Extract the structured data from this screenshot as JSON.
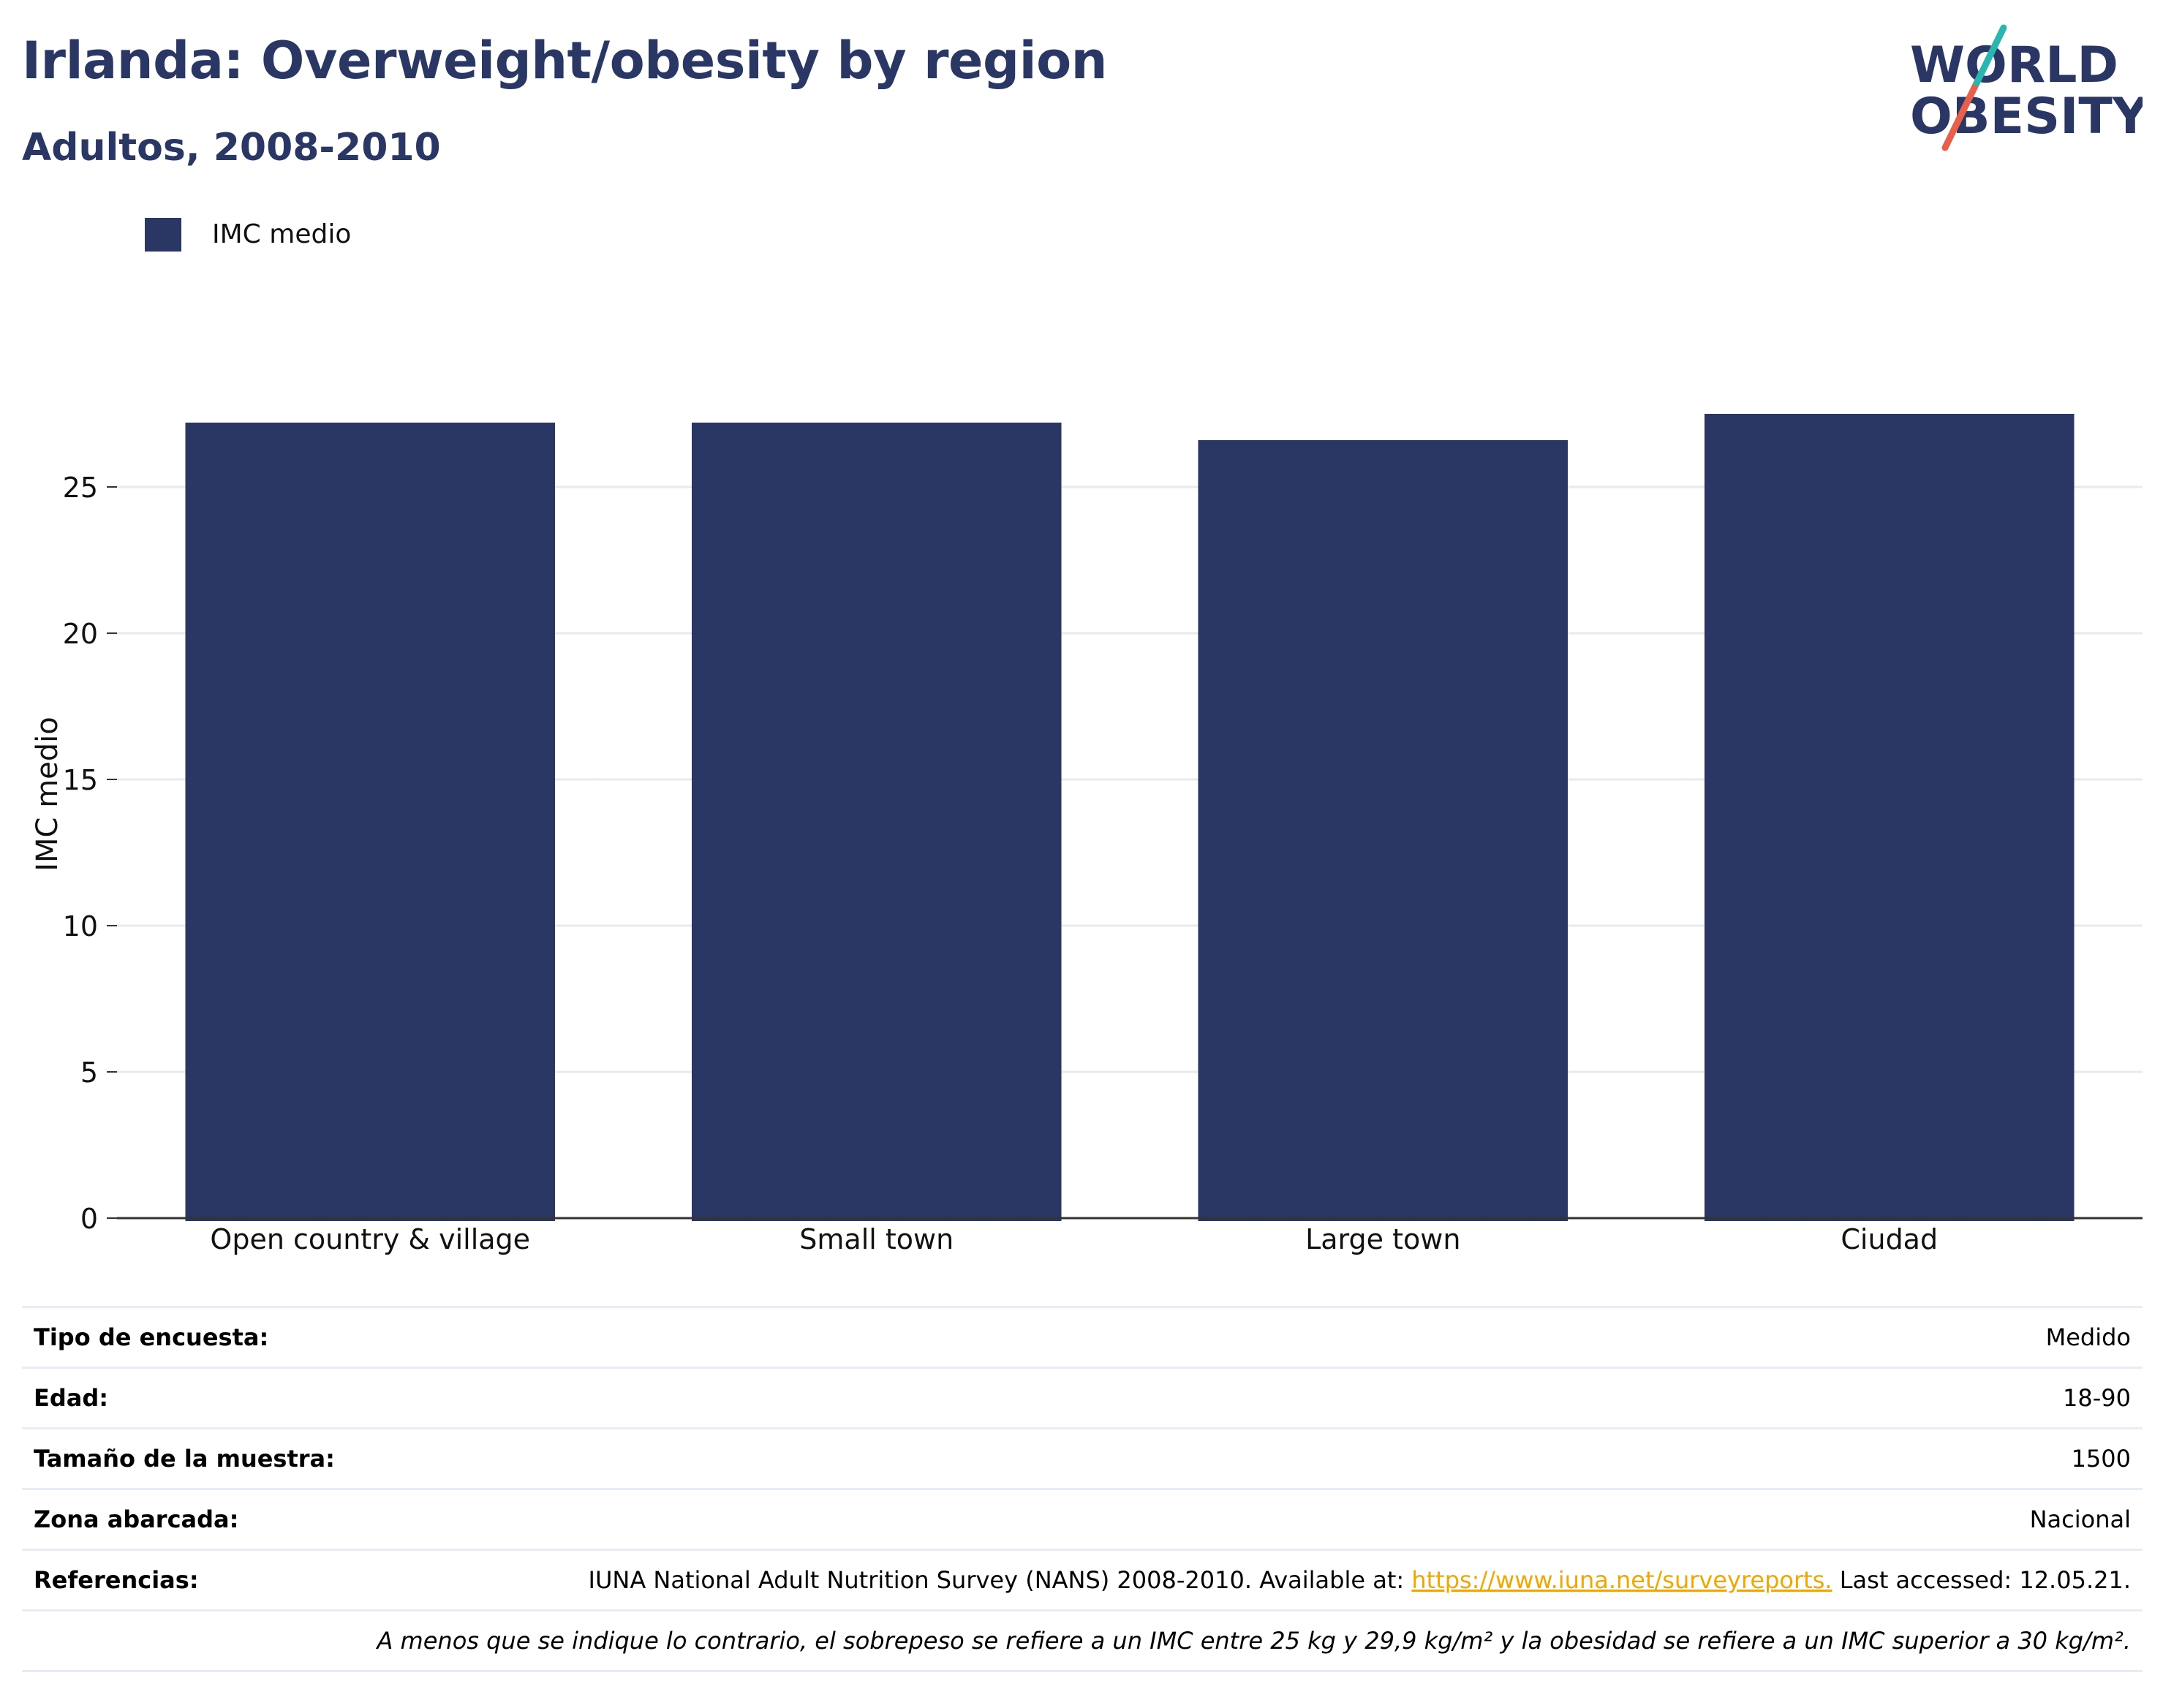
{
  "header": {
    "title": "Irlanda: Overweight/obesity by region",
    "subtitle": "Adultos, 2008-2010"
  },
  "logo": {
    "line1": "WORLD",
    "line2": "OBESITY",
    "colors": {
      "text": "#2a3663",
      "slash_top": "#2bb5b0",
      "slash_bottom": "#e8604c"
    }
  },
  "legend": {
    "label": "IMC medio",
    "color": "#2a3663"
  },
  "chart_data": {
    "type": "bar",
    "categories": [
      "Open country & village",
      "Small town",
      "Large town",
      "Ciudad"
    ],
    "series": [
      {
        "name": "IMC medio",
        "values": [
          27.2,
          27.2,
          26.6,
          27.5
        ],
        "color": "#2a3663"
      }
    ],
    "ylabel": "IMC medio",
    "ylim": [
      0,
      30
    ],
    "yticks": [
      0,
      5,
      10,
      15,
      20,
      25
    ],
    "grid": true,
    "legend_position": "top-left"
  },
  "info": {
    "rows": [
      {
        "key": "Tipo de encuesta:",
        "value": "Medido"
      },
      {
        "key": "Edad:",
        "value": "18-90"
      },
      {
        "key": "Tamaño de la muestra:",
        "value": "1500"
      },
      {
        "key": "Zona abarcada:",
        "value": "Nacional"
      }
    ],
    "references": {
      "key": "Referencias:",
      "text_before": "IUNA National Adult Nutrition Survey (NANS) 2008-2010. Available at: ",
      "link": "https://www.iuna.net/surveyreports.",
      "text_after": " Last accessed: 12.05.21."
    },
    "footnote": "A menos que se indique lo contrario, el sobrepeso se refiere a un IMC entre 25 kg y 29,9 kg/m² y la obesidad se refiere a un IMC superior a 30 kg/m²."
  }
}
